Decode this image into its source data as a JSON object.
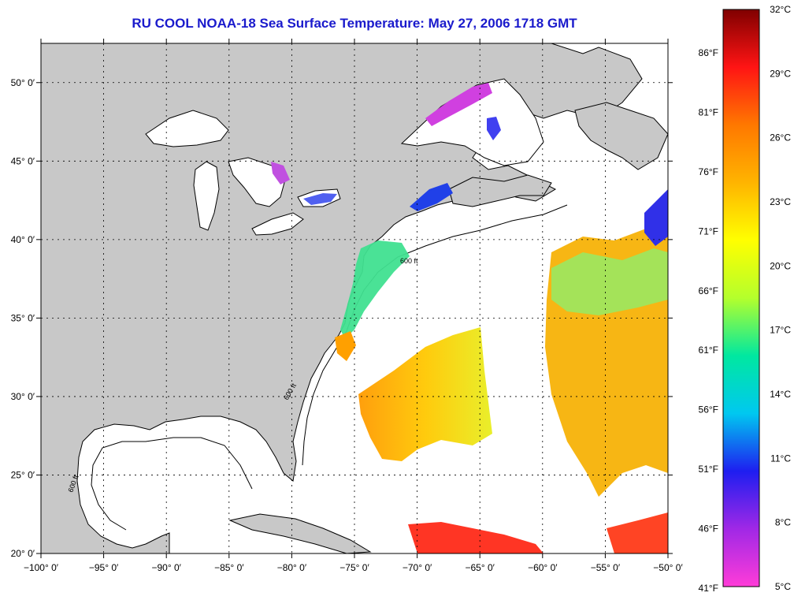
{
  "title": "RU COOL  NOAA-18  Sea Surface Temperature:  May 27, 2006 1718 GMT",
  "map": {
    "lon_range": [
      -100,
      -50
    ],
    "lat_range": [
      20,
      52.5
    ],
    "lon_ticks": [
      {
        "value": -100,
        "label": "−100° 0′"
      },
      {
        "value": -95,
        "label": "−95° 0′"
      },
      {
        "value": -90,
        "label": "−90° 0′"
      },
      {
        "value": -85,
        "label": "−85° 0′"
      },
      {
        "value": -80,
        "label": "−80° 0′"
      },
      {
        "value": -75,
        "label": "−75° 0′"
      },
      {
        "value": -70,
        "label": "−70° 0′"
      },
      {
        "value": -65,
        "label": "−65° 0′"
      },
      {
        "value": -60,
        "label": "−60° 0′"
      },
      {
        "value": -55,
        "label": "−55° 0′"
      },
      {
        "value": -50,
        "label": "−50° 0′"
      }
    ],
    "lat_ticks": [
      {
        "value": 20,
        "label": "20° 0′"
      },
      {
        "value": 25,
        "label": "25° 0′"
      },
      {
        "value": 30,
        "label": "30° 0′"
      },
      {
        "value": 35,
        "label": "35° 0′"
      },
      {
        "value": 40,
        "label": "40° 0′"
      },
      {
        "value": 45,
        "label": "45° 0′"
      },
      {
        "value": 50,
        "label": "50° 0′"
      }
    ],
    "contour_label": "600 ft",
    "land_color": "#c8c8c8",
    "ocean_color": "#ffffff"
  },
  "colorbar": {
    "colors": [
      "#ff3cd8",
      "#a028e6",
      "#1e1ef0",
      "#00c8f0",
      "#00e8a0",
      "#b4ff2c",
      "#ffff00",
      "#ffb400",
      "#ff7800",
      "#ff1414",
      "#800000"
    ],
    "celsius": [
      "32°C",
      "29°C",
      "26°C",
      "23°C",
      "20°C",
      "17°C",
      "14°C",
      "11°C",
      "8°C",
      "5°C"
    ],
    "fahrenheit": [
      "86°F",
      "81°F",
      "76°F",
      "71°F",
      "66°F",
      "61°F",
      "56°F",
      "51°F",
      "46°F",
      "41°F"
    ]
  }
}
